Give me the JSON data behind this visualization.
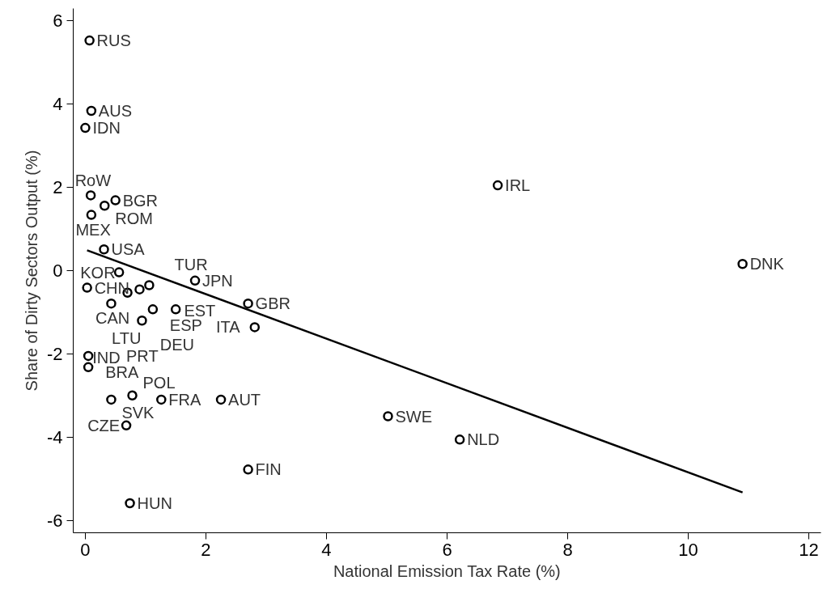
{
  "chart_data": {
    "type": "scatter",
    "xlabel": "National Emission Tax Rate (%)",
    "ylabel": "Share of Dirty Sectors Output (%)",
    "xlim": [
      -0.2,
      12.2
    ],
    "ylim": [
      -6.3,
      6.3
    ],
    "xticks": [
      0,
      2,
      4,
      6,
      8,
      10,
      12
    ],
    "yticks": [
      -6,
      -4,
      -2,
      0,
      2,
      4,
      6
    ],
    "grid": false,
    "series": [
      {
        "marker": "circle",
        "color": "#000000",
        "x": [
          0.07,
          0.1,
          0.0,
          6.84,
          0.09,
          0.5,
          0.32,
          0.1,
          0.31,
          10.9,
          0.56,
          1.82,
          0.03,
          0.7,
          0.9,
          1.06,
          1.12,
          1.5,
          0.43,
          0.94,
          2.7,
          2.81,
          0.05,
          0.05,
          0.43,
          0.78,
          1.26,
          2.25,
          0.68,
          2.7,
          0.74,
          5.02,
          6.21
        ],
        "values": [
          5.53,
          3.84,
          3.43,
          2.05,
          1.81,
          1.69,
          1.56,
          1.34,
          0.51,
          0.16,
          -0.04,
          -0.24,
          -0.41,
          -0.53,
          -0.45,
          -0.35,
          -0.93,
          -0.93,
          -0.79,
          -1.2,
          -0.79,
          -1.36,
          -2.05,
          -2.32,
          -3.1,
          -3.0,
          -3.1,
          -3.1,
          -3.72,
          -4.78,
          -5.59,
          -3.5,
          -4.06
        ]
      },
      {
        "type": "line",
        "line_style": "solid",
        "color": "#000000",
        "x": [
          0.03,
          10.9
        ],
        "values": [
          0.49,
          -5.33
        ]
      }
    ],
    "annotations": [
      {
        "text": "RUS",
        "x": 0.07,
        "y": 5.53
      },
      {
        "text": "AUS",
        "x": 0.1,
        "y": 3.84
      },
      {
        "text": "IDN",
        "x": 0.0,
        "y": 3.43
      },
      {
        "text": "IRL",
        "x": 6.84,
        "y": 2.05
      },
      {
        "text": "RoW",
        "x": 0.09,
        "y": 1.81
      },
      {
        "text": "BGR",
        "x": 0.5,
        "y": 1.69
      },
      {
        "text": "ROM",
        "x": 0.32,
        "y": 1.56
      },
      {
        "text": "MEX",
        "x": 0.1,
        "y": 1.34
      },
      {
        "text": "USA",
        "x": 0.31,
        "y": 0.51
      },
      {
        "text": "DNK",
        "x": 10.9,
        "y": 0.16
      },
      {
        "text": "KOR",
        "x": 0.56,
        "y": -0.04
      },
      {
        "text": "JPN",
        "x": 1.82,
        "y": -0.24
      },
      {
        "text": "CHN",
        "x": 0.03,
        "y": -0.41
      },
      {
        "text": "LTU",
        "x": 0.7,
        "y": -0.53
      },
      {
        "text": "TUR",
        "x": 0.9,
        "y": -0.45
      },
      {
        "text": "EST",
        "x": 1.06,
        "y": -0.35
      },
      {
        "text": "ESP",
        "x": 1.12,
        "y": -0.93
      },
      {
        "text": "DEU",
        "x": 1.5,
        "y": -0.93
      },
      {
        "text": "CAN",
        "x": 0.43,
        "y": -0.79
      },
      {
        "text": "PRT",
        "x": 0.94,
        "y": -1.2
      },
      {
        "text": "GBR",
        "x": 2.7,
        "y": -0.79
      },
      {
        "text": "ITA",
        "x": 2.81,
        "y": -1.36
      },
      {
        "text": "BRA",
        "x": 0.05,
        "y": -2.05
      },
      {
        "text": "IND",
        "x": 0.05,
        "y": -2.32
      },
      {
        "text": "SVK",
        "x": 0.43,
        "y": -3.1
      },
      {
        "text": "POL",
        "x": 0.78,
        "y": -3.0
      },
      {
        "text": "FRA",
        "x": 1.26,
        "y": -3.1
      },
      {
        "text": "AUT",
        "x": 2.25,
        "y": -3.1
      },
      {
        "text": "CZE",
        "x": 0.68,
        "y": -3.72
      },
      {
        "text": "FIN",
        "x": 2.7,
        "y": -4.78
      },
      {
        "text": "HUN",
        "x": 0.74,
        "y": -5.59
      },
      {
        "text": "SWE",
        "x": 5.02,
        "y": -3.5
      },
      {
        "text": "NLD",
        "x": 6.21,
        "y": -4.06
      }
    ]
  }
}
